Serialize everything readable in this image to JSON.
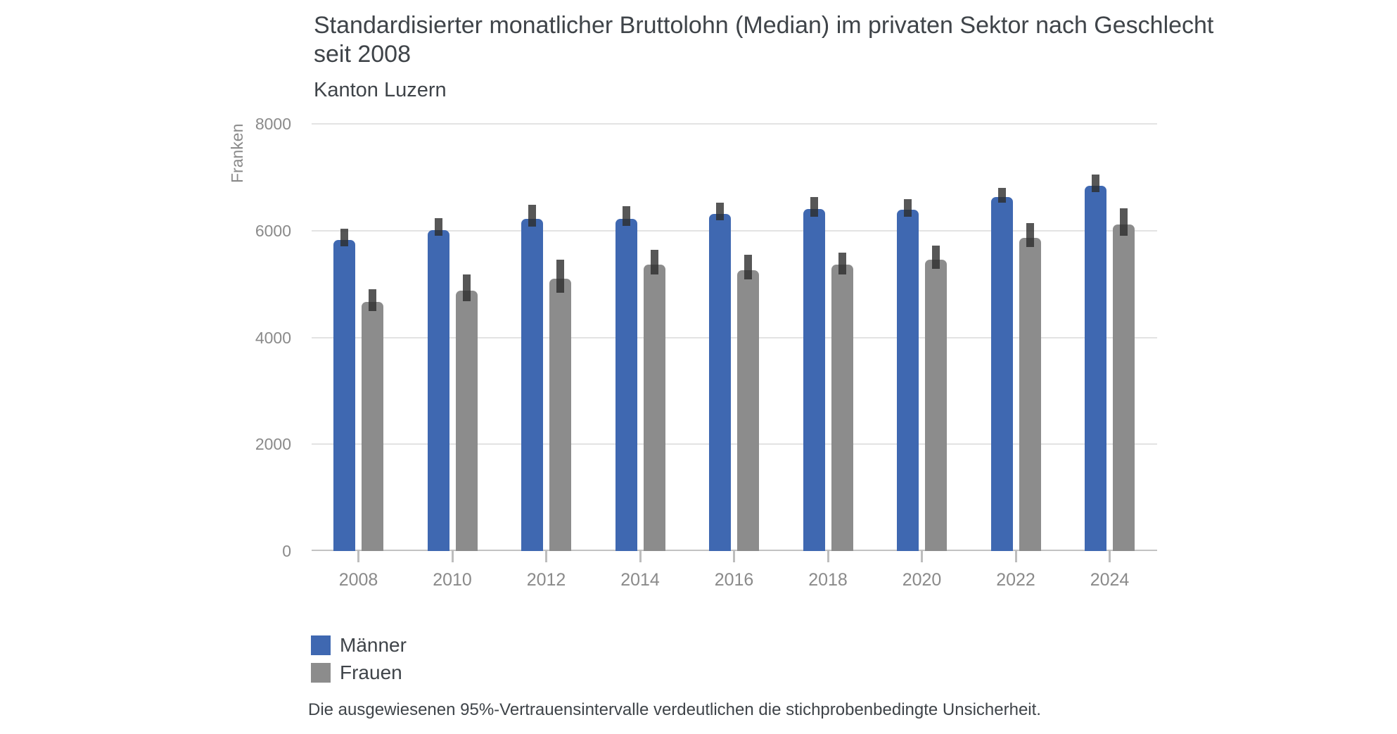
{
  "header": {
    "title": "Standardisierter monatlicher Bruttolohn (Median) im privaten Sektor nach Geschlecht seit 2008",
    "subtitle": "Kanton Luzern"
  },
  "y_axis": {
    "label": "Franken",
    "ticks": [
      0,
      2000,
      4000,
      6000,
      8000
    ]
  },
  "legend": [
    {
      "label": "Männer",
      "color": "#3F68B1"
    },
    {
      "label": "Frauen",
      "color": "#8C8C8C"
    }
  ],
  "footnote": "Die ausgewiesenen 95%-Vertrauensintervalle verdeutlichen die stichprobenbedingte Unsicherheit.",
  "colors": {
    "maenner_bar": "#3F68B1",
    "frauen_bar": "#8C8C8C",
    "error_bar": "rgba(45,45,45,0.8)",
    "gridline": "#E3E3E3",
    "axis_line": "#C2C2C2",
    "axis_text": "#8A8A8A",
    "text": "#3F4449"
  },
  "chart_data": {
    "type": "bar",
    "title": "Standardisierter monatlicher Bruttolohn (Median) im privaten Sektor nach Geschlecht seit 2008",
    "subtitle": "Kanton Luzern",
    "xlabel": "",
    "ylabel": "Franken",
    "ylim": [
      0,
      8000
    ],
    "yticks": [
      0,
      2000,
      4000,
      6000,
      8000
    ],
    "grid": true,
    "legend_position": "bottom-left",
    "error_bars": "95%-Vertrauensintervall",
    "categories": [
      "2008",
      "2010",
      "2012",
      "2014",
      "2016",
      "2018",
      "2020",
      "2022",
      "2024"
    ],
    "series": [
      {
        "name": "Männer",
        "color": "#3F68B1",
        "values": [
          5830,
          6010,
          6220,
          6220,
          6310,
          6400,
          6390,
          6630,
          6840
        ],
        "ci_low": [
          5710,
          5910,
          6070,
          6090,
          6200,
          6260,
          6260,
          6530,
          6720
        ],
        "ci_high": [
          6030,
          6240,
          6490,
          6460,
          6530,
          6630,
          6590,
          6800,
          7050
        ]
      },
      {
        "name": "Frauen",
        "color": "#8C8C8C",
        "values": [
          4660,
          4880,
          5100,
          5360,
          5260,
          5360,
          5450,
          5870,
          6110
        ],
        "ci_low": [
          4490,
          4680,
          4840,
          5180,
          5090,
          5180,
          5280,
          5700,
          5900
        ],
        "ci_high": [
          4900,
          5180,
          5460,
          5640,
          5550,
          5590,
          5720,
          6140,
          6420
        ]
      }
    ]
  }
}
